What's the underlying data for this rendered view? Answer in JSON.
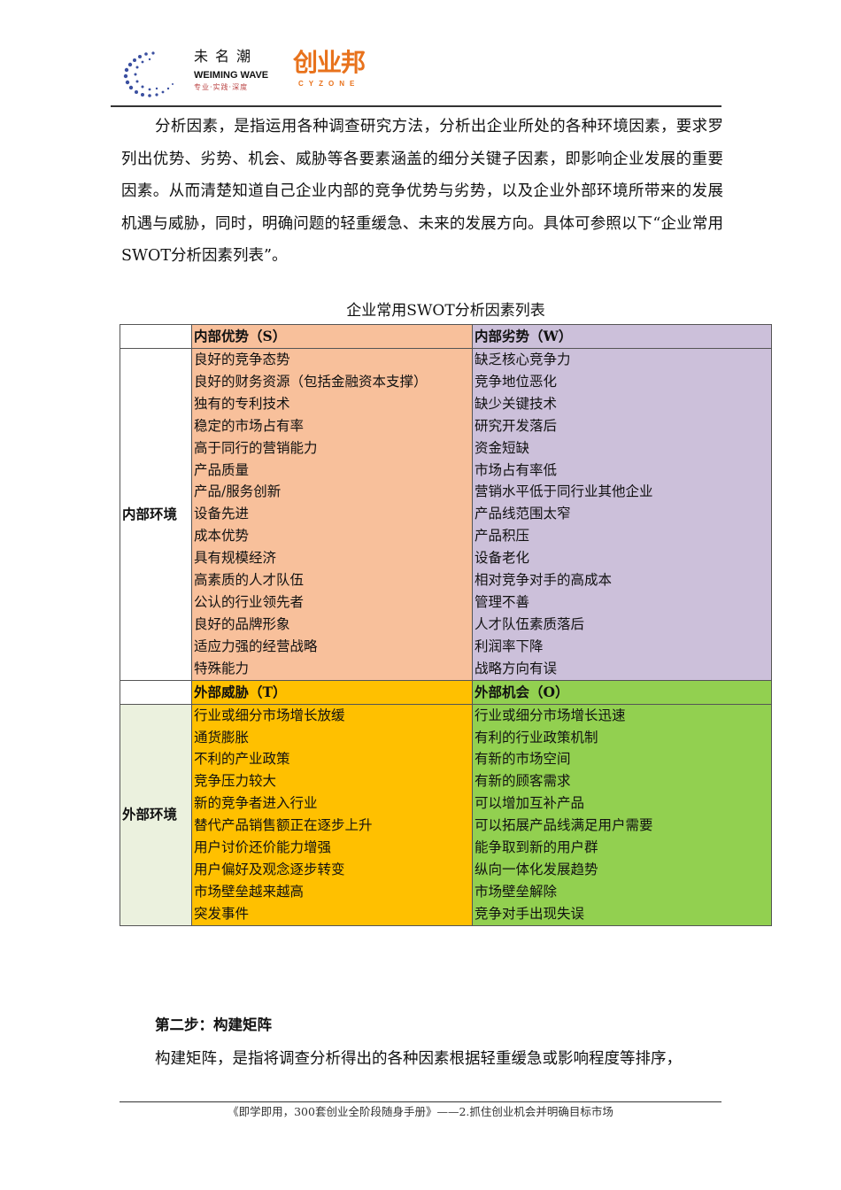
{
  "header": {
    "logo1_cn": "未名潮",
    "logo1_en": "WEIMING WAVE",
    "logo1_tagline": "专业·实践·深度",
    "logo2_cn": "创业邦",
    "logo2_en": "CYZONE"
  },
  "intro_paragraph": "分析因素，是指运用各种调查研究方法，分析出企业所处的各种环境因素，要求罗列出优势、劣势、机会、威胁等各要素涵盖的细分关键子因素，即影响企业发展的重要因素。从而清楚知道自己企业内部的竞争优势与劣势，以及企业外部环境所带来的发展机遇与威胁，同时，明确问题的轻重缓急、未来的发展方向。具体可参照以下“企业常用SWOT分析因素列表”。",
  "table": {
    "caption": "企业常用SWOT分析因素列表",
    "internal": {
      "env_label": "内部环境",
      "strengths_header": "内部优势（S）",
      "weaknesses_header": "内部劣势（W）",
      "strengths": [
        "良好的竞争态势",
        "良好的财务资源（包括金融资本支撑）",
        "独有的专利技术",
        "稳定的市场占有率",
        "高于同行的营销能力",
        "产品质量",
        "产品/服务创新",
        "设备先进",
        "成本优势",
        "具有规模经济",
        "高素质的人才队伍",
        "公认的行业领先者",
        "良好的品牌形象",
        "适应力强的经营战略",
        "特殊能力"
      ],
      "weaknesses": [
        "缺乏核心竞争力",
        "竞争地位恶化",
        "缺少关键技术",
        "研究开发落后",
        "资金短缺",
        "市场占有率低",
        "营销水平低于同行业其他企业",
        "产品线范围太窄",
        "产品积压",
        "设备老化",
        "相对竞争对手的高成本",
        "管理不善",
        "人才队伍素质落后",
        "利润率下降",
        "战略方向有误"
      ]
    },
    "external": {
      "env_label": "外部环境",
      "threats_header": "外部威胁（T）",
      "opportunities_header": "外部机会（O）",
      "threats": [
        "行业或细分市场增长放缓",
        "通货膨胀",
        "不利的产业政策",
        "竞争压力较大",
        "新的竞争者进入行业",
        "替代产品销售额正在逐步上升",
        "用户讨价还价能力增强",
        "用户偏好及观念逐步转变",
        "市场壁垒越来越高",
        "突发事件"
      ],
      "opportunities": [
        "行业或细分市场增长迅速",
        "有利的行业政策机制",
        "有新的市场空间",
        "有新的顾客需求",
        "可以增加互补产品",
        "可以拓展产品线满足用户需要",
        "能争取到新的用户群",
        "纵向一体化发展趋势",
        "市场壁垒解除",
        "竞争对手出现失误"
      ]
    },
    "colors": {
      "S": "#f8c09b",
      "W": "#ccc0da",
      "T": "#ffc000",
      "O": "#92d050",
      "external_env": "#ebf1de"
    }
  },
  "step2": {
    "heading": "第二步：构建矩阵",
    "paragraph": "构建矩阵，是指将调查分析得出的各种因素根据轻重缓急或影响程度等排序，"
  },
  "footer": "《即学即用，300套创业全阶段随身手册》——2.抓住创业机会并明确目标市场"
}
